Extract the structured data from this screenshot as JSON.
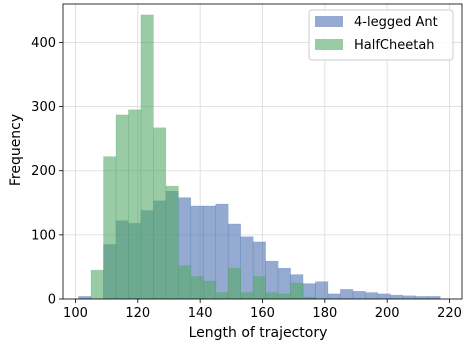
{
  "chart_data": {
    "type": "bar",
    "title": "",
    "xlabel": "Length of trajectory",
    "ylabel": "Frequency",
    "xlim": [
      96,
      224
    ],
    "ylim": [
      0,
      460
    ],
    "xticks": [
      100,
      120,
      140,
      160,
      180,
      200,
      220
    ],
    "yticks": [
      0,
      100,
      200,
      300,
      400
    ],
    "grid": true,
    "legend_position": "top-right",
    "bin_width": 4,
    "series": [
      {
        "name": "4-legged Ant",
        "color": "#4c72b0",
        "bins": [
          {
            "x0": 101,
            "count": 4
          },
          {
            "x0": 105,
            "count": 0
          },
          {
            "x0": 109,
            "count": 85
          },
          {
            "x0": 113,
            "count": 122
          },
          {
            "x0": 117,
            "count": 118
          },
          {
            "x0": 121,
            "count": 138
          },
          {
            "x0": 125,
            "count": 153
          },
          {
            "x0": 129,
            "count": 168
          },
          {
            "x0": 133,
            "count": 158
          },
          {
            "x0": 137,
            "count": 145
          },
          {
            "x0": 141,
            "count": 145
          },
          {
            "x0": 145,
            "count": 148
          },
          {
            "x0": 149,
            "count": 117
          },
          {
            "x0": 153,
            "count": 97
          },
          {
            "x0": 157,
            "count": 89
          },
          {
            "x0": 161,
            "count": 59
          },
          {
            "x0": 165,
            "count": 48
          },
          {
            "x0": 169,
            "count": 38
          },
          {
            "x0": 173,
            "count": 24
          },
          {
            "x0": 177,
            "count": 27
          },
          {
            "x0": 181,
            "count": 8
          },
          {
            "x0": 185,
            "count": 15
          },
          {
            "x0": 189,
            "count": 12
          },
          {
            "x0": 193,
            "count": 10
          },
          {
            "x0": 197,
            "count": 8
          },
          {
            "x0": 201,
            "count": 6
          },
          {
            "x0": 205,
            "count": 5
          },
          {
            "x0": 209,
            "count": 4
          },
          {
            "x0": 213,
            "count": 4
          }
        ]
      },
      {
        "name": "HalfCheetah",
        "color": "#55a868",
        "bins": [
          {
            "x0": 105,
            "count": 45
          },
          {
            "x0": 109,
            "count": 222
          },
          {
            "x0": 113,
            "count": 287
          },
          {
            "x0": 117,
            "count": 295
          },
          {
            "x0": 121,
            "count": 443
          },
          {
            "x0": 125,
            "count": 267
          },
          {
            "x0": 129,
            "count": 176
          },
          {
            "x0": 133,
            "count": 52
          },
          {
            "x0": 137,
            "count": 35
          },
          {
            "x0": 141,
            "count": 28
          },
          {
            "x0": 145,
            "count": 10
          },
          {
            "x0": 149,
            "count": 48
          },
          {
            "x0": 153,
            "count": 10
          },
          {
            "x0": 157,
            "count": 35
          },
          {
            "x0": 161,
            "count": 10
          },
          {
            "x0": 165,
            "count": 8
          },
          {
            "x0": 169,
            "count": 25
          },
          {
            "x0": 173,
            "count": 3
          }
        ]
      }
    ]
  }
}
